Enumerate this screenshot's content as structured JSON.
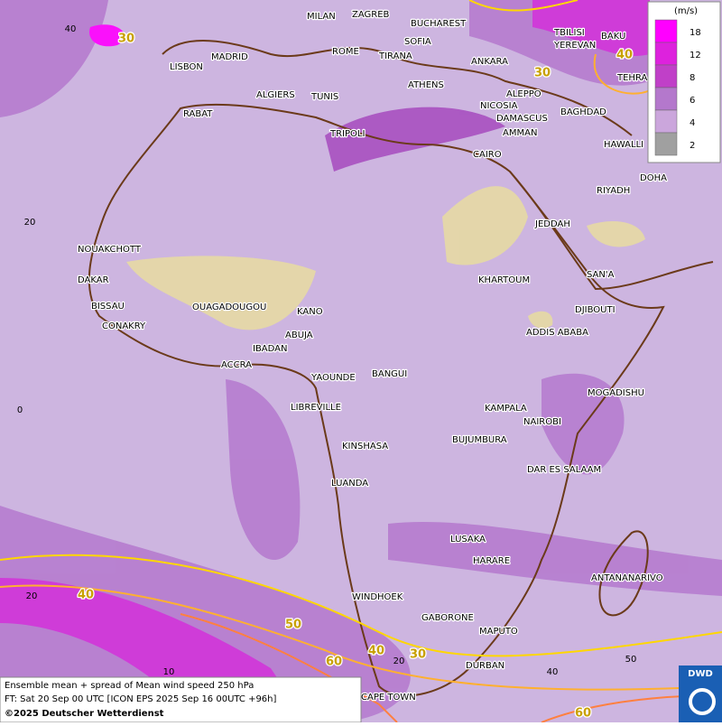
{
  "map": {
    "cities": [
      "MILAN",
      "ZAGREB",
      "BUCHAREST",
      "MADRID",
      "ROME",
      "SOFIA",
      "TBILISI",
      "BAKU",
      "YEREVAN",
      "LISBON",
      "TIRANA",
      "ANKARA",
      "ATHENS",
      "TEHRA",
      "ALGIERS",
      "TUNIS",
      "ALEPPO",
      "RABAT",
      "NICOSIA",
      "BAGHDAD",
      "DAMASCUS",
      "TRIPOLI",
      "AMMAN",
      "HAWALLI",
      "CAIRO",
      "DOHA",
      "RIYADH",
      "JEDDAH",
      "NOUAKCHOTT",
      "DAKAR",
      "SAN'A",
      "KHARTOUM",
      "BISSAU",
      "OUAGADOUGOU",
      "KANO",
      "DJIBOUTI",
      "CONAKRY",
      "ABUJA",
      "ADDIS ABABA",
      "IBADAN",
      "ACCRA",
      "YAOUNDE",
      "BANGUI",
      "MOGADISHU",
      "LIBREVILLE",
      "KAMPALA",
      "NAIROBI",
      "KINSHASA",
      "BUJUMBURA",
      "DAR ES SALAAM",
      "LUANDA",
      "LUSAKA",
      "HARARE",
      "ANTANANARIVO",
      "WINDHOEK",
      "GABORONE",
      "MAPUTO",
      "DURBAN",
      "CAPE TOWN"
    ],
    "contour_labels": [
      "30",
      "30",
      "40",
      "40",
      "50",
      "40",
      "30",
      "60",
      "60"
    ],
    "grid_labels": [
      "40",
      "20",
      "0",
      "20",
      "10",
      "20",
      "40",
      "50"
    ]
  },
  "legend": {
    "unit": "(m/s)",
    "levels": [
      {
        "value": 18,
        "color": "#ff00ff"
      },
      {
        "value": 12,
        "color": "#dd22dd"
      },
      {
        "value": 8,
        "color": "#c040c8"
      },
      {
        "value": 6,
        "color": "#b478cc"
      },
      {
        "value": 4,
        "color": "#cba6dc"
      },
      {
        "value": 2,
        "color": "#a0a0a0"
      }
    ]
  },
  "footer": [
    "Ensemble mean + spread of Mean wind speed 250 hPa",
    "FT: Sat 20 Sep 00 UTC [ICON EPS 2025 Sep 16 00UTC +96h]",
    "©2025 Deutscher Wetterdienst"
  ],
  "logo": "DWD"
}
